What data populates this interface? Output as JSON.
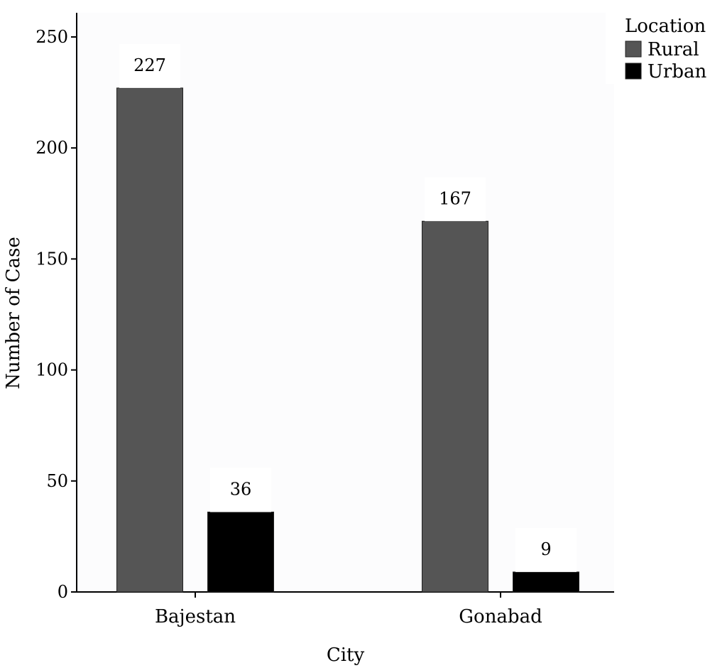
{
  "chart_data": {
    "type": "bar",
    "categories": [
      "Bajestan",
      "Gonabad"
    ],
    "series": [
      {
        "name": "Rural",
        "values": [
          227,
          167
        ],
        "color": "#555555"
      },
      {
        "name": "Urban",
        "values": [
          36,
          9
        ],
        "color": "#000000"
      }
    ],
    "xlabel": "City",
    "ylabel": "Number of Case",
    "ylim": [
      0,
      250
    ],
    "yticks": [
      0,
      50,
      100,
      150,
      200,
      250
    ],
    "legend": {
      "title": "Location",
      "position": "top-right"
    },
    "grid": false,
    "panel_color": "#fcfcfd"
  }
}
